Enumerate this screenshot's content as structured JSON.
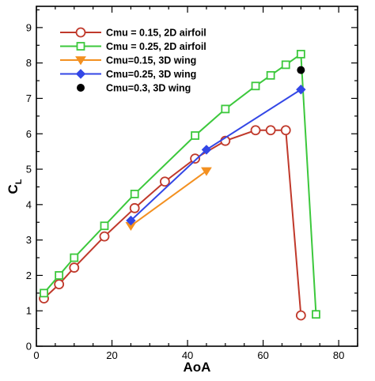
{
  "chart_data": {
    "type": "line",
    "xlabel": "AoA",
    "ylabel_main": "C",
    "ylabel_sub": "L",
    "xlim": [
      0,
      85
    ],
    "ylim": [
      0,
      9.6
    ],
    "xticks": [
      0,
      20,
      40,
      60,
      80
    ],
    "yticks": [
      0,
      1,
      2,
      3,
      4,
      5,
      6,
      7,
      8,
      9
    ],
    "legend_position": "top-left",
    "grid": false,
    "series": [
      {
        "name": "Cmu = 0.15, 2D airfoil",
        "marker": "circle",
        "color": "#c0392b",
        "x": [
          2,
          6,
          10,
          18,
          26,
          34,
          42,
          50,
          58,
          62,
          66,
          70
        ],
        "y": [
          1.35,
          1.75,
          2.22,
          3.1,
          3.9,
          4.65,
          5.3,
          5.8,
          6.1,
          6.1,
          6.1,
          0.87
        ]
      },
      {
        "name": "Cmu = 0.25, 2D airfoil",
        "marker": "square",
        "color": "#3cc83c",
        "x": [
          2,
          6,
          10,
          18,
          26,
          42,
          50,
          58,
          62,
          66,
          70,
          74
        ],
        "y": [
          1.5,
          2.0,
          2.5,
          3.4,
          4.3,
          5.95,
          6.7,
          7.35,
          7.65,
          7.95,
          8.25,
          0.9
        ]
      },
      {
        "name": "Cmu=0.15, 3D wing",
        "marker": "triangle-down",
        "color": "#f39020",
        "x": [
          25,
          45
        ],
        "y": [
          3.4,
          4.95
        ]
      },
      {
        "name": "Cmu=0.25, 3D wing",
        "marker": "diamond",
        "color": "#3347e6",
        "x": [
          25,
          45,
          70
        ],
        "y": [
          3.55,
          5.55,
          7.25
        ]
      },
      {
        "name": "Cmu=0.3, 3D wing",
        "marker": "dot",
        "color": "#000000",
        "x": [
          70
        ],
        "y": [
          7.8
        ]
      }
    ]
  }
}
